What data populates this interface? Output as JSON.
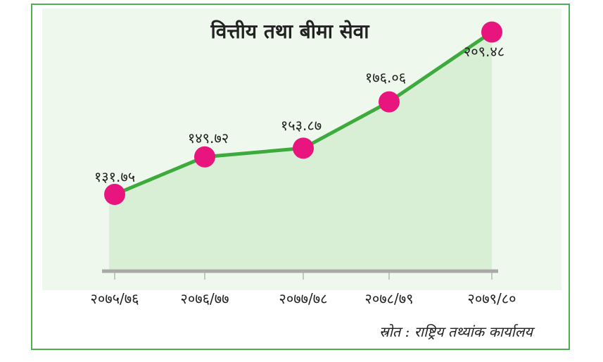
{
  "chart_data": {
    "type": "line",
    "title": "वित्तीय तथा बीमा सेवा",
    "categories": [
      "२०७५/७६",
      "२०७६/७७",
      "२०७७/७८",
      "२०७८/७९",
      "२०७९/८०"
    ],
    "values": [
      131.75,
      149.72,
      153.87,
      176.06,
      209.48
    ],
    "value_labels": [
      "१३१.७५",
      "१४९.७२",
      "१५३.८७",
      "१७६.०६",
      "२०९.४८"
    ],
    "ylim": [
      95,
      212
    ],
    "grid": false,
    "area_fill": true,
    "source": "स्रोत : राष्ट्रिय तथ्यांक कार्यालय",
    "colors": {
      "frame": "#4caf50",
      "line": "#3daa3d",
      "marker": "#e8157f",
      "area": "#d9efd5",
      "background": "#eef8ec",
      "axis": "#a9a9a9"
    }
  }
}
